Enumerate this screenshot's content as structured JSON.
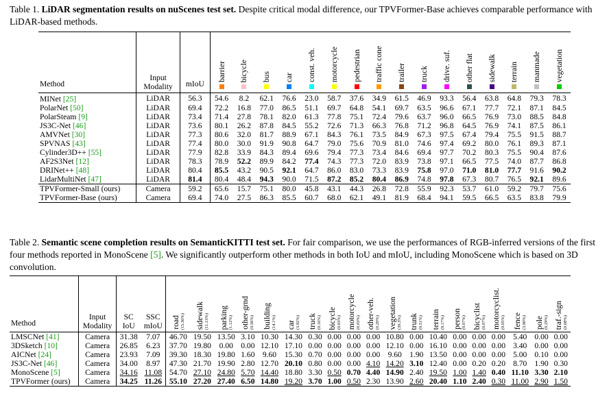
{
  "table1": {
    "caption_label": "Table 1.",
    "caption_bold": "LiDAR segmentation results on nuScenes test set.",
    "caption_rest": " Despite critical modal difference, our TPVFormer-Base achieves comparable performance with LiDAR-based methods.",
    "headers": {
      "method": "Method",
      "input1": "Input",
      "input2": "Modality",
      "miou": "mIoU"
    },
    "classes": [
      {
        "name": "barrier",
        "color": "#ff7f0e"
      },
      {
        "name": "bicycle",
        "color": "#ffc0cb"
      },
      {
        "name": "bus",
        "color": "#ffff00"
      },
      {
        "name": "car",
        "color": "#0080ff"
      },
      {
        "name": "const. veh.",
        "color": "#00ffff"
      },
      {
        "name": "motorcycle",
        "color": "#ffff00"
      },
      {
        "name": "pedestrian",
        "color": "#ff0000"
      },
      {
        "name": "traffic cone",
        "color": "#ff9900"
      },
      {
        "name": "trailer",
        "color": "#8b4513"
      },
      {
        "name": "truck",
        "color": "#a020f0"
      },
      {
        "name": "drive. suf.",
        "color": "#ff00ff"
      },
      {
        "name": "other flat",
        "color": "#2f4f4f"
      },
      {
        "name": "sidewalk",
        "color": "#4b0082"
      },
      {
        "name": "terrain",
        "color": "#bdb76b"
      },
      {
        "name": "manmade",
        "color": "#c0c0c0"
      },
      {
        "name": "vegetation",
        "color": "#00cc00"
      }
    ],
    "rows": [
      {
        "method": "MINet",
        "ref": "[25]",
        "mod": "LiDAR",
        "miou": "56.3",
        "vals": [
          "54.6",
          "8.2",
          "62.1",
          "76.6",
          "23.0",
          "58.7",
          "37.6",
          "34.9",
          "61.5",
          "46.9",
          "93.3",
          "56.4",
          "63.8",
          "64.8",
          "79.3",
          "78.3"
        ]
      },
      {
        "method": "PolarNet",
        "ref": "[50]",
        "mod": "LiDAR",
        "miou": "69.4",
        "vals": [
          "72.2",
          "16.8",
          "77.0",
          "86.5",
          "51.1",
          "69.7",
          "64.8",
          "54.1",
          "69.7",
          "63.5",
          "96.6",
          "67.1",
          "77.7",
          "72.1",
          "87.1",
          "84.5"
        ]
      },
      {
        "method": "PolarSteam",
        "ref": "[9]",
        "mod": "LiDAR",
        "miou": "73.4",
        "vals": [
          "71.4",
          "27.8",
          "78.1",
          "82.0",
          "61.3",
          "77.8",
          "75.1",
          "72.4",
          "79.6",
          "63.7",
          "96.0",
          "66.5",
          "76.9",
          "73.0",
          "88.5",
          "84.8"
        ]
      },
      {
        "method": "JS3C-Net",
        "ref": "[46]",
        "mod": "LiDAR",
        "miou": "73.6",
        "vals": [
          "80.1",
          "26.2",
          "87.8",
          "84.5",
          "55.2",
          "72.6",
          "71.3",
          "66.3",
          "76.8",
          "71.2",
          "96.8",
          "64.5",
          "76.9",
          "74.1",
          "87.5",
          "86.1"
        ]
      },
      {
        "method": "AMVNet",
        "ref": "[30]",
        "mod": "LiDAR",
        "miou": "77.3",
        "vals": [
          "80.6",
          "32.0",
          "81.7",
          "88.9",
          "67.1",
          "84.3",
          "76.1",
          "73.5",
          "84.9",
          "67.3",
          "97.5",
          "67.4",
          "79.4",
          "75.5",
          "91.5",
          "88.7"
        ]
      },
      {
        "method": "SPVNAS",
        "ref": "[43]",
        "mod": "LiDAR",
        "miou": "77.4",
        "vals": [
          "80.0",
          "30.0",
          "91.9",
          "90.8",
          "64.7",
          "79.0",
          "75.6",
          "70.9",
          "81.0",
          "74.6",
          "97.4",
          "69.2",
          "80.0",
          "76.1",
          "89.3",
          "87.1"
        ]
      },
      {
        "method": "Cylinder3D++",
        "ref": "[55]",
        "mod": "LiDAR",
        "miou": "77.9",
        "vals": [
          "82.8",
          "33.9",
          "84.3",
          "89.4",
          "69.6",
          "79.4",
          "77.3",
          "73.4",
          "84.6",
          "69.4",
          "97.7",
          "70.2",
          "80.3",
          "75.5",
          "90.4",
          "87.6"
        ]
      },
      {
        "method": "AF2S3Net",
        "ref": "[12]",
        "mod": "LiDAR",
        "miou": "78.3",
        "vals": [
          "78.9",
          "52.2",
          "89.9",
          "84.2",
          "77.4",
          "74.3",
          "77.3",
          "72.0",
          "83.9",
          "73.8",
          "97.1",
          "66.5",
          "77.5",
          "74.0",
          "87.7",
          "86.8"
        ]
      },
      {
        "method": "DRINet++",
        "ref": "[48]",
        "mod": "LiDAR",
        "miou": "80.4",
        "vals": [
          "85.5",
          "43.2",
          "90.5",
          "92.1",
          "64.7",
          "86.0",
          "83.0",
          "73.3",
          "83.9",
          "75.8",
          "97.0",
          "71.0",
          "81.0",
          "77.7",
          "91.6",
          "90.2"
        ]
      },
      {
        "method": "LidarMultiNet",
        "ref": "[47]",
        "mod": "LiDAR",
        "miou": "81.4",
        "vals": [
          "80.4",
          "48.4",
          "94.3",
          "90.0",
          "71.5",
          "87.2",
          "85.2",
          "80.4",
          "86.9",
          "74.8",
          "97.8",
          "67.3",
          "80.7",
          "76.5",
          "92.1",
          "89.6"
        ]
      },
      {
        "method": "TPVFormer-Small (ours)",
        "ref": "",
        "mod": "Camera",
        "miou": "59.2",
        "vals": [
          "65.6",
          "15.7",
          "75.1",
          "80.0",
          "45.8",
          "43.1",
          "44.3",
          "26.8",
          "72.8",
          "55.9",
          "92.3",
          "53.7",
          "61.0",
          "59.2",
          "79.7",
          "75.6"
        ]
      },
      {
        "method": "TPVFormer-Base (ours)",
        "ref": "",
        "mod": "Camera",
        "miou": "69.4",
        "vals": [
          "74.0",
          "27.5",
          "86.3",
          "85.5",
          "60.7",
          "68.0",
          "62.1",
          "49.1",
          "81.9",
          "68.4",
          "94.1",
          "59.5",
          "66.5",
          "63.5",
          "83.8",
          "79.9"
        ]
      }
    ]
  },
  "table2": {
    "caption_label": "Table 2.",
    "caption_bold": "Semantic scene completion results on SemanticKITTI test set.",
    "caption_rest_a": " For fair comparison, we use the performances of RGB-inferred versions of the first four methods reported in MonoScene ",
    "caption_ref": "[5]",
    "caption_rest_b": ". We significantly outperform other methods in both IoU and mIoU, including MonoScene which is based on 3D convolution.",
    "headers": {
      "method": "Method",
      "input1": "Input",
      "input2": "Modality",
      "sc1": "SC",
      "sc2": "IoU",
      "ssc1": "SSC",
      "ssc2": "mIoU"
    },
    "classes": [
      {
        "name": "road",
        "pct": "(15.30%)"
      },
      {
        "name": "sidewalk",
        "pct": "(11.13%)"
      },
      {
        "name": "parking",
        "pct": "(1.12%)"
      },
      {
        "name": "other-grnd",
        "pct": "(0.56%)"
      },
      {
        "name": "building",
        "pct": "(14.1%)"
      },
      {
        "name": "car",
        "pct": "(3.92%)"
      },
      {
        "name": "truck",
        "pct": "(0.16%)"
      },
      {
        "name": "bicycle",
        "pct": "(0.03%)"
      },
      {
        "name": "motorcycle",
        "pct": "(0.03%)"
      },
      {
        "name": "other-veh.",
        "pct": "(0.20%)"
      },
      {
        "name": "vegetation",
        "pct": "(39.3%)"
      },
      {
        "name": "trunk",
        "pct": "(0.51%)"
      },
      {
        "name": "terrain",
        "pct": "(9.17%)"
      },
      {
        "name": "person",
        "pct": "(0.07%)"
      },
      {
        "name": "bicyclist",
        "pct": "(0.07%)"
      },
      {
        "name": "motorcyclist.",
        "pct": "(0.05%)"
      },
      {
        "name": "fence",
        "pct": "(3.90%)"
      },
      {
        "name": "pole",
        "pct": "(0.29%)"
      },
      {
        "name": "traf.-sign",
        "pct": "(0.08%)"
      }
    ],
    "rows": [
      {
        "method": "LMSCNet",
        "ref": "[41]",
        "mod": "Camera",
        "sc": "31.38",
        "ssc": "7.07",
        "vals": [
          "46.70",
          "19.50",
          "13.50",
          "3.10",
          "10.30",
          "14.30",
          "0.30",
          "0.00",
          "0.00",
          "0.00",
          "10.80",
          "0.00",
          "10.40",
          "0.00",
          "0.00",
          "0.00",
          "5.40",
          "0.00",
          "0.00"
        ]
      },
      {
        "method": "3DSketch",
        "ref": "[10]",
        "mod": "Camera",
        "sc": "26.85",
        "ssc": "6.23",
        "vals": [
          "37.70",
          "19.80",
          "0.00",
          "0.00",
          "12.10",
          "17.10",
          "0.00",
          "0.00",
          "0.00",
          "0.00",
          "12.10",
          "0.00",
          "16.10",
          "0.00",
          "0.00",
          "0.00",
          "3.40",
          "0.00",
          "0.00"
        ]
      },
      {
        "method": "AICNet",
        "ref": "[24]",
        "mod": "Camera",
        "sc": "23.93",
        "ssc": "7.09",
        "vals": [
          "39.30",
          "18.30",
          "19.80",
          "1.60",
          "9.60",
          "15.30",
          "0.70",
          "0.00",
          "0.00",
          "0.00",
          "9.60",
          "1.90",
          "13.50",
          "0.00",
          "0.00",
          "0.00",
          "5.00",
          "0.10",
          "0.00"
        ]
      },
      {
        "method": "JS3C-Net",
        "ref": "[46]",
        "mod": "Camera",
        "sc": "34.00",
        "ssc": "8.97",
        "vals": [
          "47.30",
          "21.70",
          "19.90",
          "2.80",
          "12.70",
          "20.10",
          "0.80",
          "0.00",
          "0.00",
          "4.10",
          "14.20",
          "3.10",
          "12.40",
          "0.00",
          "0.20",
          "0.20",
          "8.70",
          "1.90",
          "0.30"
        ]
      },
      {
        "method": "MonoScene",
        "ref": "[5]",
        "mod": "Camera",
        "sc": "34.16",
        "ssc": "11.08",
        "vals": [
          "54.70",
          "27.10",
          "24.80",
          "5.70",
          "14.40",
          "18.80",
          "3.30",
          "0.50",
          "0.70",
          "4.40",
          "14.90",
          "2.40",
          "19.50",
          "1.00",
          "1.40",
          "0.40",
          "11.10",
          "3.30",
          "2.10"
        ]
      },
      {
        "method": "TPVFormer (ours)",
        "ref": "",
        "mod": "Camera",
        "sc": "34.25",
        "ssc": "11.26",
        "vals": [
          "55.10",
          "27.20",
          "27.40",
          "6.50",
          "14.80",
          "19.20",
          "3.70",
          "1.00",
          "0.50",
          "2.30",
          "13.90",
          "2.60",
          "20.40",
          "1.10",
          "2.40",
          "0.30",
          "11.00",
          "2.90",
          "1.50"
        ]
      }
    ]
  }
}
